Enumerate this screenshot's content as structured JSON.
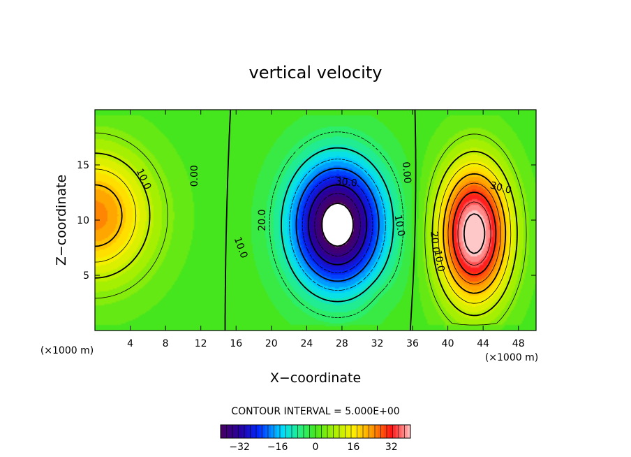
{
  "chart_data": {
    "type": "heatmap",
    "title": "vertical velocity",
    "xlabel": "X−coordinate",
    "ylabel": "Z−coordinate",
    "x_unit_left": "(×1000 m)",
    "x_unit_right": "(×1000 m)",
    "xlim": [
      0,
      50
    ],
    "ylim": [
      0,
      20
    ],
    "x_ticks": [
      4,
      8,
      12,
      16,
      20,
      24,
      28,
      32,
      36,
      40,
      44,
      48
    ],
    "y_ticks": [
      5,
      10,
      15
    ],
    "contour_interval_text": "CONTOUR INTERVAL = 5.000E+00",
    "contour_interval": 5,
    "colorbar": {
      "min": -40,
      "max": 40,
      "ticks": [
        -32,
        -16,
        0,
        16,
        32
      ]
    },
    "cells": [
      {
        "name": "left-updraft",
        "x": 0,
        "z": 10.5,
        "peak": 25
      },
      {
        "name": "central-downdraft",
        "x": 28,
        "z": 9,
        "peak": -40
      },
      {
        "name": "right-updraft",
        "x": 43,
        "z": 8,
        "peak": 40
      }
    ],
    "contour_labels": [
      {
        "text": "10.0",
        "x": 5.5,
        "z": 13.7,
        "angle": 65
      },
      {
        "text": "0.00",
        "x": 11.3,
        "z": 14.0,
        "angle": -90
      },
      {
        "text": "30.0",
        "x": 28.5,
        "z": 13.4,
        "angle": 5
      },
      {
        "text": "20.0",
        "x": 19.0,
        "z": 10.0,
        "angle": -90
      },
      {
        "text": "10.0",
        "x": 16.5,
        "z": 7.5,
        "angle": 70
      },
      {
        "text": "10.0",
        "x": 34.5,
        "z": 9.5,
        "angle": 80
      },
      {
        "text": "0.00",
        "x": 35.3,
        "z": 14.3,
        "angle": 85
      },
      {
        "text": "30.0",
        "x": 46.0,
        "z": 12.9,
        "angle": 15
      },
      {
        "text": "20.0",
        "x": 38.5,
        "z": 8.0,
        "angle": 85
      },
      {
        "text": "10.0",
        "x": 39.0,
        "z": 6.3,
        "angle": 80
      }
    ]
  }
}
